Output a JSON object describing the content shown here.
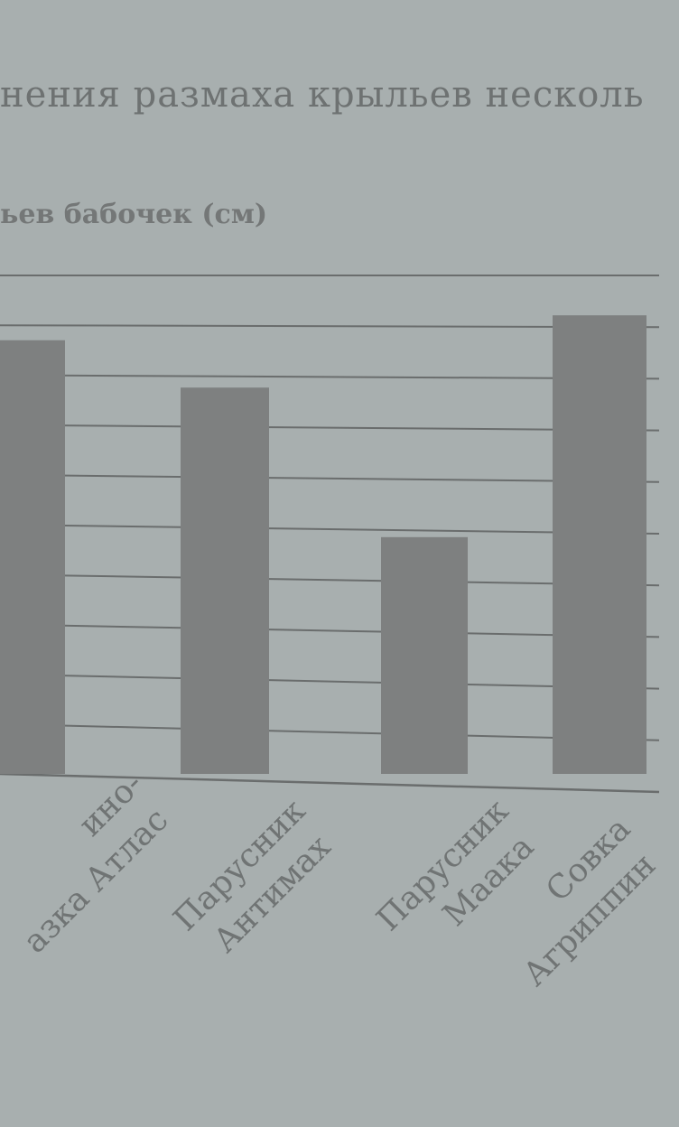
{
  "title_line1": "нения размаха крыльев несколь",
  "title_line2": "ьев бабочек (см)",
  "chart_data": {
    "type": "bar",
    "title": "ьев бабочек (см)",
    "categories": [
      [
        "ино-",
        "азка Атлас"
      ],
      [
        "Парусник",
        "Антимах"
      ],
      [
        "Парусник",
        "Маака"
      ],
      [
        "Совка",
        "Агриппин"
      ]
    ],
    "values": [
      8.7,
      7.75,
      4.75,
      9.2
    ],
    "ylim": [
      0,
      10
    ],
    "grid": true,
    "xlabel": "",
    "ylabel": "",
    "colors": {
      "bar": "#7e8080",
      "grid": "#6a6d6d",
      "background": "#a8afaf"
    }
  }
}
